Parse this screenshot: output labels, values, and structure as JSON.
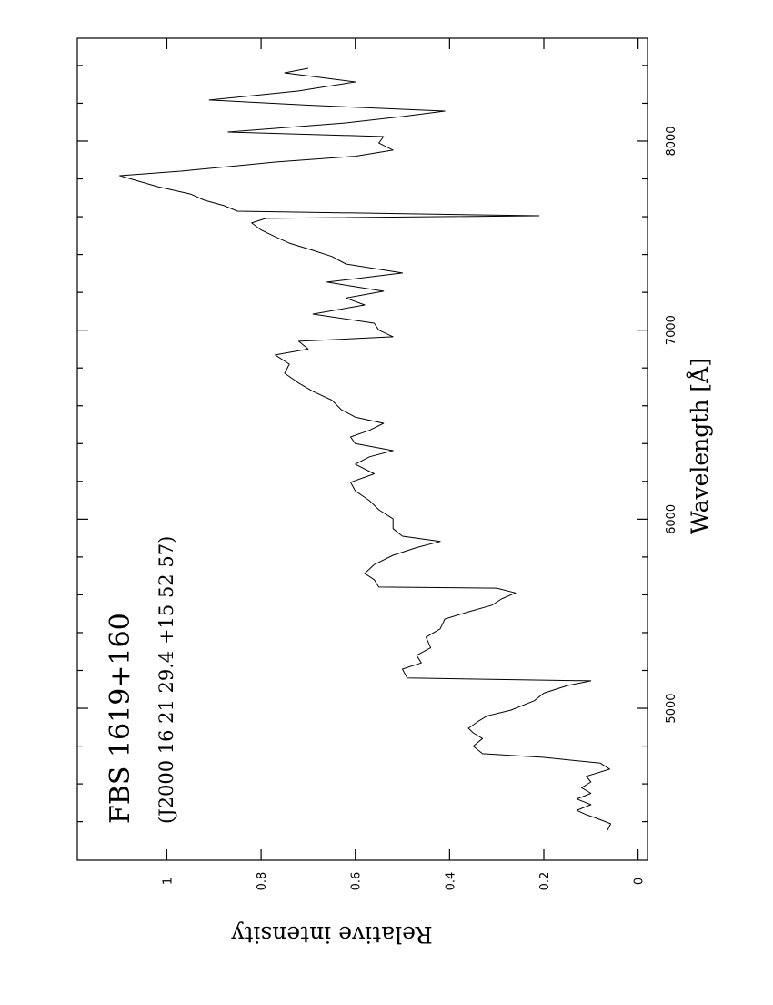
{
  "chart_data": {
    "type": "line",
    "title": "FBS 1619+160",
    "subtitle": "(J2000 16 21 29.4 +15 52 57)",
    "x_label": "Wavelength [Å]",
    "y_label": "Relative intensity",
    "x": [
      4355,
      4389,
      4420,
      4437,
      4460,
      4490,
      4520,
      4550,
      4580,
      4610,
      4640,
      4678,
      4710,
      4740,
      4760,
      4800,
      4840,
      4870,
      4894,
      4930,
      4960,
      4990,
      5040,
      5080,
      5120,
      5145,
      5160,
      5207,
      5240,
      5280,
      5320,
      5376,
      5420,
      5472,
      5510,
      5545,
      5578,
      5610,
      5635,
      5641,
      5680,
      5713,
      5760,
      5809,
      5850,
      5882,
      5910,
      5950,
      6002,
      6050,
      6098,
      6150,
      6195,
      6240,
      6291,
      6330,
      6363,
      6400,
      6435,
      6470,
      6507,
      6540,
      6580,
      6630,
      6676,
      6720,
      6772,
      6820,
      6869,
      6900,
      6941,
      6965,
      7000,
      7037,
      7085,
      7133,
      7170,
      7206,
      7254,
      7302,
      7350,
      7390,
      7422,
      7460,
      7494,
      7530,
      7567,
      7591,
      7605,
      7629,
      7660,
      7687,
      7720,
      7759,
      7817,
      7841,
      7889,
      7920,
      7952,
      7990,
      8024,
      8048,
      8096,
      8130,
      8159,
      8190,
      8217,
      8265,
      8313,
      8361,
      8385
    ],
    "series": [
      {
        "name": "FBS 1619+160",
        "color": "#000000",
        "values": [
          0.065,
          0.058,
          0.09,
          0.11,
          0.13,
          0.1,
          0.13,
          0.1,
          0.12,
          0.1,
          0.11,
          0.06,
          0.08,
          0.2,
          0.33,
          0.35,
          0.33,
          0.35,
          0.36,
          0.34,
          0.32,
          0.27,
          0.22,
          0.2,
          0.15,
          0.1,
          0.49,
          0.5,
          0.46,
          0.47,
          0.44,
          0.45,
          0.42,
          0.41,
          0.36,
          0.31,
          0.29,
          0.26,
          0.3,
          0.55,
          0.56,
          0.58,
          0.56,
          0.52,
          0.47,
          0.42,
          0.5,
          0.52,
          0.52,
          0.55,
          0.57,
          0.6,
          0.61,
          0.56,
          0.6,
          0.57,
          0.52,
          0.6,
          0.61,
          0.57,
          0.54,
          0.6,
          0.63,
          0.65,
          0.69,
          0.72,
          0.75,
          0.74,
          0.77,
          0.7,
          0.72,
          0.52,
          0.55,
          0.56,
          0.69,
          0.58,
          0.62,
          0.54,
          0.66,
          0.5,
          0.62,
          0.65,
          0.69,
          0.74,
          0.77,
          0.8,
          0.82,
          0.79,
          0.21,
          0.85,
          0.88,
          0.92,
          0.95,
          1.02,
          1.1,
          0.97,
          0.77,
          0.6,
          0.52,
          0.55,
          0.54,
          0.87,
          0.62,
          0.5,
          0.41,
          0.7,
          0.91,
          0.72,
          0.6,
          0.75,
          0.7
        ]
      }
    ],
    "xlim": [
      4196,
      8544
    ],
    "ylim": [
      -0.02,
      1.19
    ],
    "xticks": [
      5000,
      6000,
      7000,
      8000
    ],
    "xminorticks": [
      4400,
      4600,
      4800,
      5200,
      5400,
      5600,
      5800,
      6200,
      6400,
      6600,
      6800,
      7200,
      7400,
      7600,
      7800,
      8200,
      8400
    ],
    "yticks": [
      0,
      0.2,
      0.4,
      0.6,
      0.8,
      1
    ]
  }
}
